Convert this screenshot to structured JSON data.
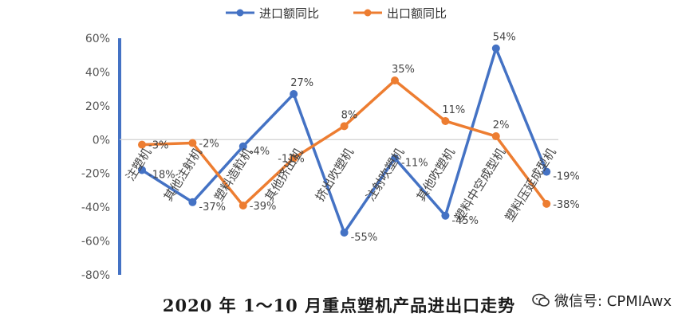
{
  "chart_data": {
    "type": "line",
    "categories": [
      "注塑机",
      "其他注射机",
      "塑料造粒机",
      "其他挤出机",
      "挤出吹塑机",
      "注射吹塑机",
      "其他吹塑机",
      "塑料中空成型机",
      "塑料压延成型机"
    ],
    "series": [
      {
        "name": "进口额同比",
        "color": "#4472c4",
        "values": [
          -18,
          -37,
          -4,
          27,
          -55,
          -11,
          -45,
          54,
          -19
        ],
        "labels": [
          "-18%",
          "-37%",
          "-4%",
          "27%",
          "-55%",
          "-11%",
          "-45%",
          "54%",
          "-19%"
        ]
      },
      {
        "name": "出口额同比",
        "color": "#ed7d31",
        "values": [
          -3,
          -2,
          -39,
          -11,
          8,
          35,
          11,
          2,
          -38
        ],
        "labels": [
          "-3%",
          "-2%",
          "-39%",
          "-11%",
          "8%",
          "35%",
          "11%",
          "2%",
          "-38%"
        ]
      }
    ],
    "ylim": [
      -80,
      60
    ],
    "yticks": [
      60,
      40,
      20,
      0,
      -20,
      -40,
      -60,
      -80
    ],
    "ytick_labels": [
      "60%",
      "40%",
      "20%",
      "0%",
      "-20%",
      "-40%",
      "-60%",
      "-80%"
    ],
    "legend_position": "top",
    "grid": false,
    "axis_color": "#4472c4",
    "title": "2020 年 1～10 月重点塑机产品进出口走势"
  },
  "watermark": {
    "text": "微信号: CPMIAwx",
    "icon": "wechat-icon"
  }
}
